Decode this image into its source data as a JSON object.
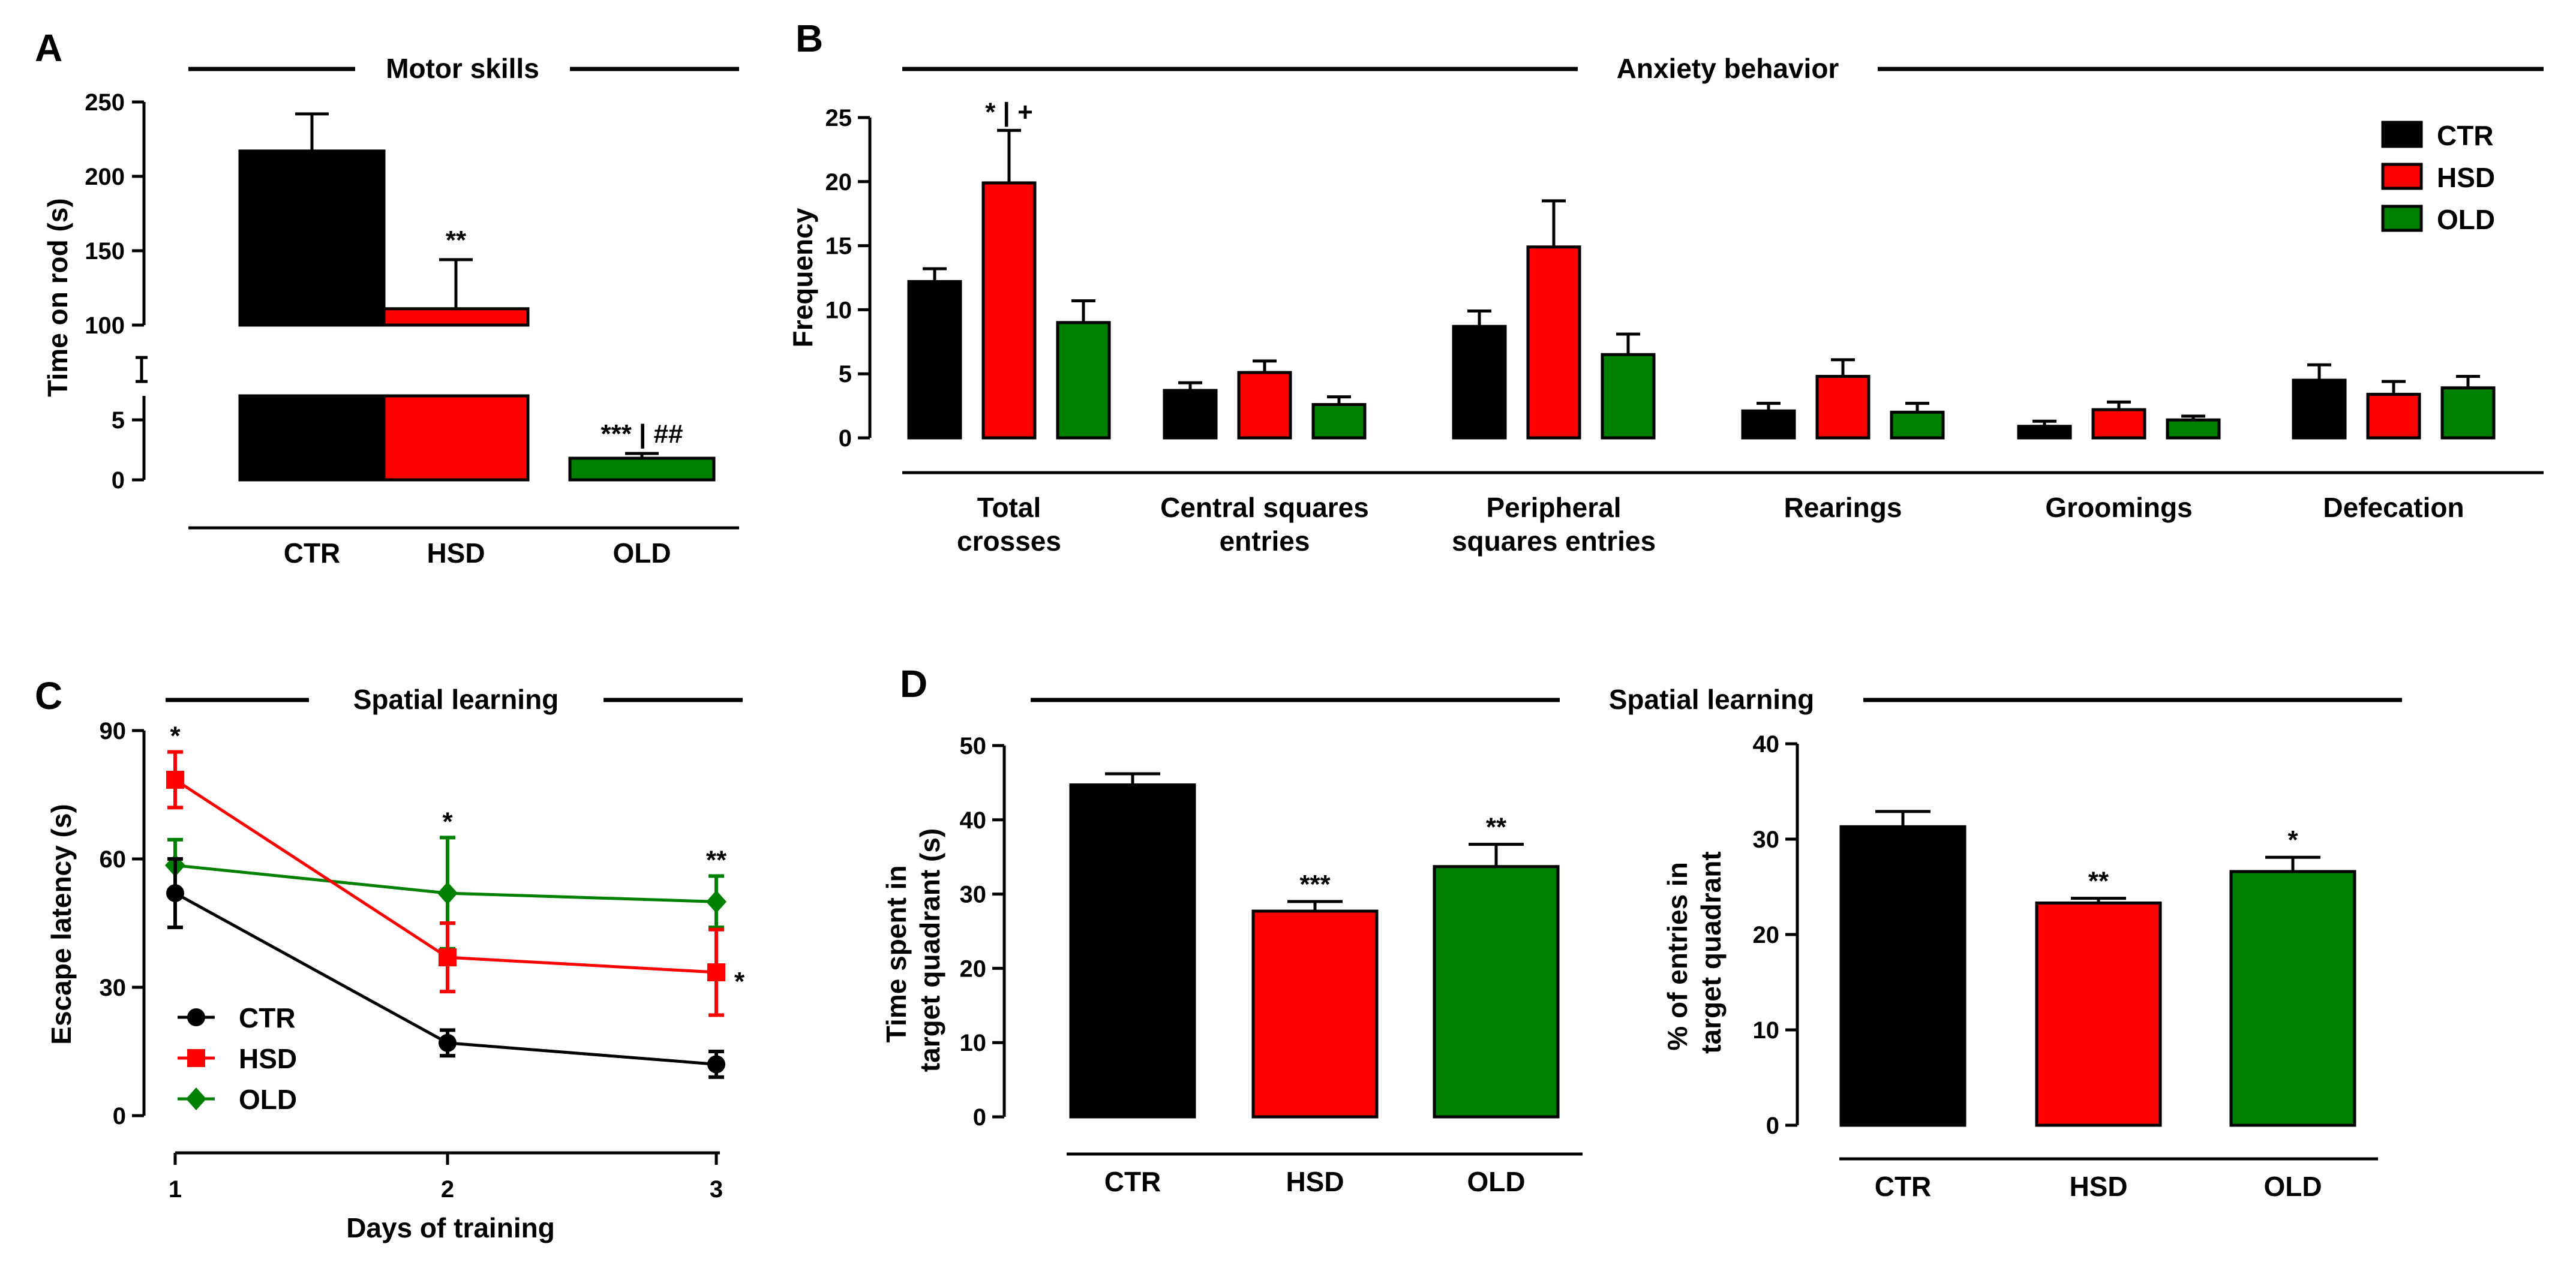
{
  "colors": {
    "CTR": "#000000",
    "HSD": "#ff0000",
    "OLD": "#008000"
  },
  "groups": [
    "CTR",
    "HSD",
    "OLD"
  ],
  "chart_data": [
    {
      "id": "A",
      "panel_label": "A",
      "type": "bar",
      "title": "Motor skills",
      "ylabel": "Time on rod (s)",
      "categories": [
        "CTR",
        "HSD",
        "OLD"
      ],
      "values": [
        217,
        111,
        1.8
      ],
      "errors": [
        25,
        33,
        0.4
      ],
      "significance": [
        "",
        "**",
        "*** | ##"
      ],
      "axis_break": {
        "lower": [
          0,
          7
        ],
        "upper": [
          100,
          250
        ]
      },
      "yticks_lower": [
        "0",
        "5"
      ],
      "yticks_upper": [
        "100",
        "150",
        "200",
        "250"
      ]
    },
    {
      "id": "B",
      "panel_label": "B",
      "type": "bar",
      "title": "Anxiety behavior",
      "ylabel": "Frequency",
      "categories": [
        "Total\ncrosses",
        "Central squares\nentries",
        "Peripheral\nsquares entries",
        "Rearings",
        "Groomings",
        "Defecation"
      ],
      "series": [
        {
          "name": "CTR",
          "values": [
            12.2,
            3.7,
            8.7,
            2.1,
            0.9,
            4.5
          ],
          "errors": [
            1.0,
            0.6,
            1.2,
            0.6,
            0.4,
            1.2
          ]
        },
        {
          "name": "HSD",
          "values": [
            19.9,
            5.1,
            14.9,
            4.8,
            2.2,
            3.4
          ],
          "errors": [
            4.1,
            0.9,
            3.6,
            1.3,
            0.6,
            1.0
          ]
        },
        {
          "name": "OLD",
          "values": [
            9.0,
            2.6,
            6.5,
            2.0,
            1.4,
            3.9
          ],
          "errors": [
            1.7,
            0.6,
            1.6,
            0.7,
            0.3,
            0.9
          ]
        }
      ],
      "significance": [
        {
          "category": 0,
          "series": "HSD",
          "label": "* | +"
        }
      ],
      "ylim": [
        0,
        25
      ],
      "yticks": [
        "0",
        "5",
        "10",
        "15",
        "20",
        "25"
      ],
      "legend": [
        "CTR",
        "HSD",
        "OLD"
      ]
    },
    {
      "id": "C",
      "panel_label": "C",
      "type": "line",
      "title": "Spatial learning",
      "ylabel": "Escape latency (s)",
      "xlabel": "Days of training",
      "x": [
        1,
        2,
        3
      ],
      "series": [
        {
          "name": "CTR",
          "marker": "circle",
          "values": [
            52,
            17,
            12
          ],
          "errors": [
            8,
            3,
            3
          ]
        },
        {
          "name": "HSD",
          "marker": "square",
          "values": [
            78.5,
            37,
            33.5
          ],
          "errors": [
            6.5,
            8,
            10
          ]
        },
        {
          "name": "OLD",
          "marker": "diamond",
          "values": [
            58.5,
            52,
            50
          ],
          "errors": [
            6,
            13,
            6
          ]
        }
      ],
      "annotations": [
        {
          "x": 1,
          "label": "*",
          "position": "above"
        },
        {
          "x": 2,
          "label": "*",
          "position": "above"
        },
        {
          "x": 3,
          "label": "**",
          "position": "above"
        },
        {
          "x": 3,
          "label": "*",
          "position": "right"
        }
      ],
      "ylim": [
        0,
        90
      ],
      "yticks": [
        "0",
        "30",
        "60",
        "90"
      ],
      "xticks": [
        "1",
        "2",
        "3"
      ],
      "legend": [
        "CTR",
        "HSD",
        "OLD"
      ]
    },
    {
      "id": "D1",
      "panel_label": "D",
      "type": "bar",
      "title": "Spatial learning",
      "ylabel": "Time spent in\ntarget quadrant (s)",
      "categories": [
        "CTR",
        "HSD",
        "OLD"
      ],
      "values": [
        44.7,
        27.7,
        33.7
      ],
      "errors": [
        1.5,
        1.3,
        3.0
      ],
      "significance": [
        "",
        "***",
        "**"
      ],
      "ylim": [
        0,
        50
      ],
      "yticks": [
        "0",
        "10",
        "20",
        "30",
        "40",
        "50"
      ]
    },
    {
      "id": "D2",
      "type": "bar",
      "ylabel": "% of entries in\ntarget quadrant",
      "categories": [
        "CTR",
        "HSD",
        "OLD"
      ],
      "values": [
        31.3,
        23.3,
        26.6
      ],
      "errors": [
        1.6,
        0.5,
        1.5
      ],
      "significance": [
        "",
        "**",
        "*"
      ],
      "ylim": [
        0,
        40
      ],
      "yticks": [
        "0",
        "10",
        "20",
        "30",
        "40"
      ]
    }
  ]
}
